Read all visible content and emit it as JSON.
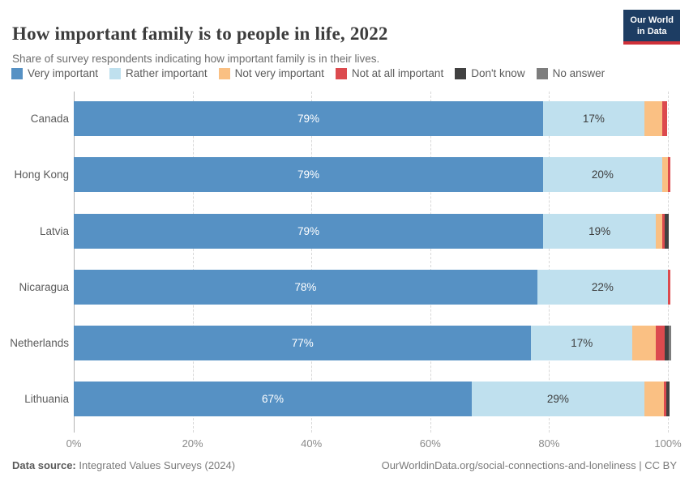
{
  "header": {
    "title": "How important family is to people in life, 2022",
    "subtitle": "Share of survey respondents indicating how important family is in their lives."
  },
  "logo": {
    "line1": "Our World",
    "line2": "in Data",
    "bg_color": "#1d3d63",
    "accent_color": "#cf3039"
  },
  "legend": {
    "items": [
      {
        "label": "Very important",
        "color": "#5691c4"
      },
      {
        "label": "Rather important",
        "color": "#bfe0ee"
      },
      {
        "label": "Not very important",
        "color": "#fac083"
      },
      {
        "label": "Not at all important",
        "color": "#dc4a4e"
      },
      {
        "label": "Don't know",
        "color": "#414141"
      },
      {
        "label": "No answer",
        "color": "#7d7d7d"
      }
    ]
  },
  "chart_data": {
    "type": "bar",
    "stacked": true,
    "orientation": "horizontal",
    "grid": true,
    "xlim": [
      0,
      100
    ],
    "x_ticks": [
      "0%",
      "20%",
      "40%",
      "60%",
      "80%",
      "100%"
    ],
    "value_suffix": "%",
    "min_pct_for_label": 5,
    "categories": [
      "Canada",
      "Hong Kong",
      "Latvia",
      "Nicaragua",
      "Netherlands",
      "Lithuania"
    ],
    "series": [
      {
        "name": "Very important",
        "color": "#5691c4",
        "label_color": "#ffffff",
        "values": [
          79,
          79,
          79,
          78,
          77,
          67
        ]
      },
      {
        "name": "Rather important",
        "color": "#bfe0ee",
        "label_color": "#3d3d3d",
        "values": [
          17,
          20,
          19,
          22,
          17,
          29
        ]
      },
      {
        "name": "Not very important",
        "color": "#fac083",
        "label_color": "#3d3d3d",
        "values": [
          3.1,
          1.0,
          1.1,
          0,
          4.0,
          3.3
        ]
      },
      {
        "name": "Not at all important",
        "color": "#dc4a4e",
        "label_color": "#ffffff",
        "values": [
          0.8,
          0.35,
          0.35,
          0.35,
          1.4,
          0.4
        ]
      },
      {
        "name": "Don't know",
        "color": "#414141",
        "label_color": "#ffffff",
        "values": [
          0,
          0,
          0.7,
          0,
          0.8,
          0.6
        ]
      },
      {
        "name": "No answer",
        "color": "#7d7d7d",
        "label_color": "#ffffff",
        "values": [
          0,
          0,
          0,
          0,
          0.3,
          0
        ]
      }
    ]
  },
  "footer": {
    "datasource_label": "Data source:",
    "datasource_value": " Integrated Values Surveys (2024)",
    "credit": "OurWorldinData.org/social-connections-and-loneliness | CC BY"
  }
}
